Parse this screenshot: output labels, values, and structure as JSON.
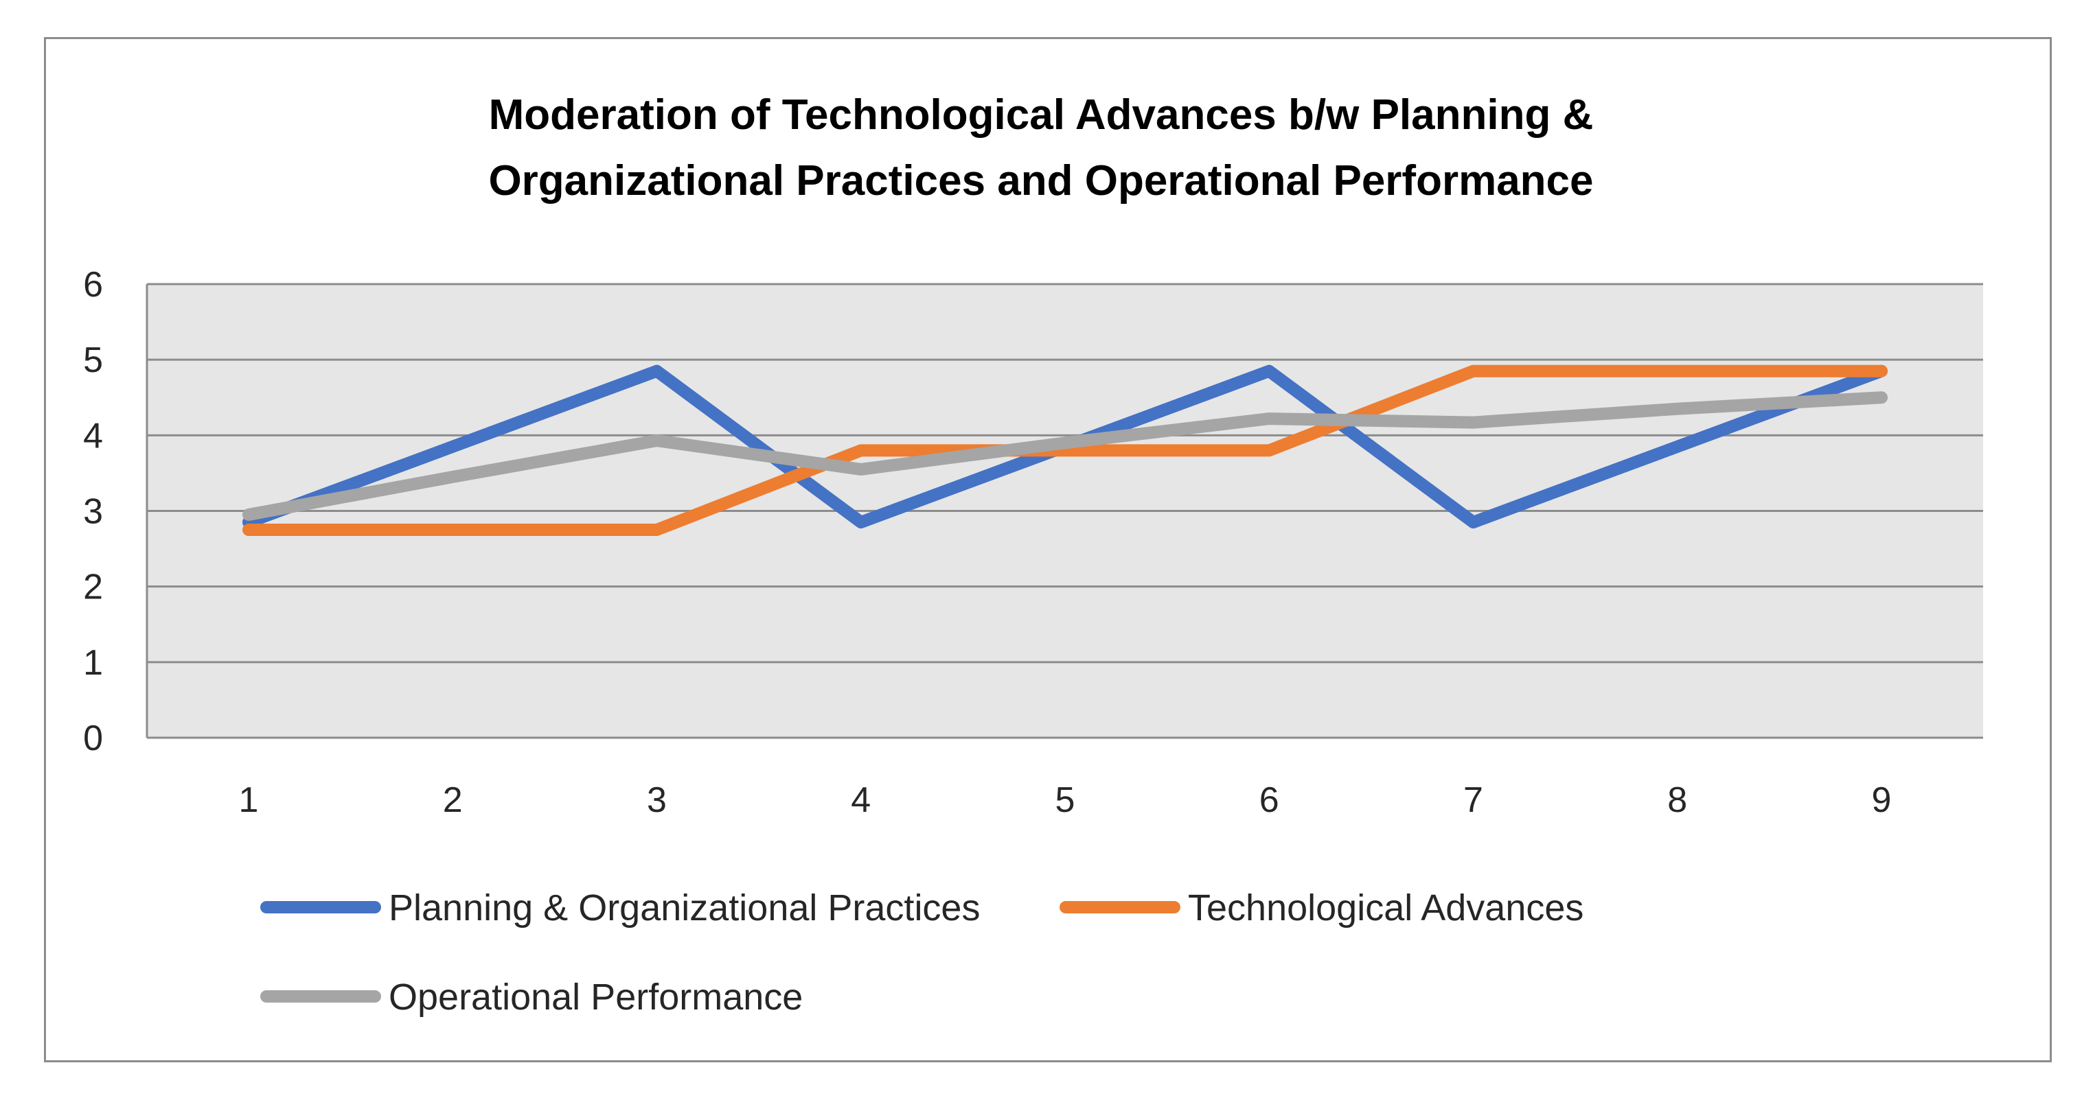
{
  "chart_data": {
    "type": "line",
    "title": [
      "Moderation of Technological Advances b/w Planning &",
      "Organizational Practices and Operational Performance"
    ],
    "categories": [
      "1",
      "2",
      "3",
      "4",
      "5",
      "6",
      "7",
      "8",
      "9"
    ],
    "y_ticks": [
      "0",
      "1",
      "2",
      "3",
      "4",
      "5",
      "6"
    ],
    "ylim": [
      0,
      6
    ],
    "grid": true,
    "legend_position": "bottom",
    "plot_background": "#e6e6e6",
    "grid_color": "#8c8c8c",
    "series": [
      {
        "name": "Planning & Organizational Practices",
        "color": "#4472c4",
        "values": [
          2.85,
          3.85,
          4.85,
          2.85,
          3.85,
          4.85,
          2.85,
          3.85,
          4.85
        ]
      },
      {
        "name": "Technological Advances",
        "color": "#ed7d31",
        "values": [
          2.75,
          2.75,
          2.75,
          3.8,
          3.8,
          3.8,
          4.85,
          4.85,
          4.85
        ]
      },
      {
        "name": "Operational Performance",
        "color": "#a5a5a5",
        "values": [
          2.95,
          3.45,
          3.93,
          3.55,
          3.9,
          4.22,
          4.17,
          4.35,
          4.5
        ]
      }
    ]
  }
}
